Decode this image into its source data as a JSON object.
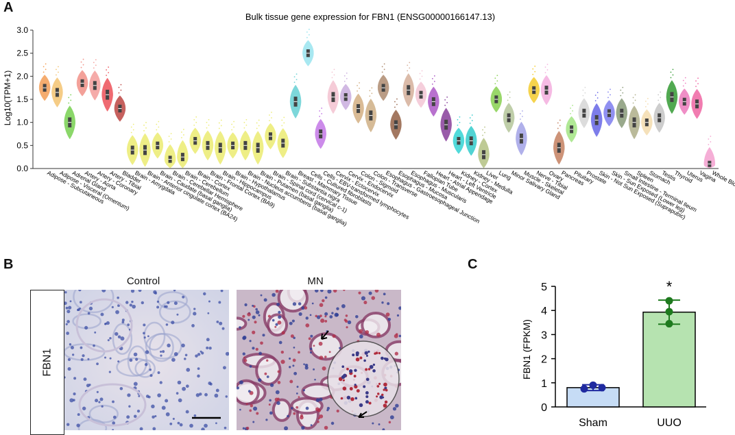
{
  "panels": {
    "a": "A",
    "b": "B",
    "c": "C"
  },
  "panel_b": {
    "row_label": "FBN1",
    "control_title": "Control",
    "mn_title": "MN"
  },
  "chart_data": [
    {
      "type": "violin",
      "title": "Bulk tissue gene expression for FBN1 (ENSG00000166147.13)",
      "xlabel": "",
      "ylabel": "Log10(TPM+1)",
      "ylim": [
        0,
        3.0
      ],
      "yticks": [
        "0.0",
        "0.5",
        "1.0",
        "1.5",
        "2.0",
        "2.5",
        "3.0"
      ],
      "grid": false,
      "categories": [
        "Adipose - Subcutaneous",
        "Adipose - Visceral (Omentum)",
        "Adrenal Gland",
        "Artery - Aorta",
        "Artery - Coronary",
        "Artery - Tibial",
        "Bladder",
        "Brain - Amygdala",
        "Brain - Anterior cingulate cortex (BA24)",
        "Brain - Caudate (basal ganglia)",
        "Brain - Cerebellar Hemisphere",
        "Brain - Cerebellum",
        "Brain - Cortex",
        "Brain - Frontal Cortex (BA9)",
        "Brain - Hippocampus",
        "Brain - Hypothalamus",
        "Brain - Nucleus accumbens (basal ganglia)",
        "Brain - Putamen (basal ganglia)",
        "Brain - Spinal cord (cervical c-1)",
        "Brain - Substantia nigra",
        "Breast - Mammary Tissue",
        "Cells - Cultured fibroblasts",
        "Cells - EBV-transformed lymphocytes",
        "Cervix - Ectocervix",
        "Cervix - Endocervix",
        "Colon - Sigmoid",
        "Colon - Transverse",
        "Esophagus - Gastroesophageal Junction",
        "Esophagus - Mucosa",
        "Esophagus - Muscularis",
        "Fallopian Tube",
        "Heart - Atrial Appendage",
        "Heart - Left Ventricle",
        "Kidney - Cortex",
        "Kidney - Medulla",
        "Liver",
        "Lung",
        "Minor Salivary Gland",
        "Muscle - Skeletal",
        "Nerve - Tibial",
        "Ovary",
        "Pancreas",
        "Pituitary",
        "Prostate",
        "Skin - Not Sun Exposed (Suprapubic)",
        "Skin - Sun Exposed (Lower leg)",
        "Small Intestine - Terminal Ileum",
        "Spleen",
        "Stomach",
        "Testis",
        "Thyroid",
        "Uterus",
        "Vagina",
        "Whole Blood"
      ],
      "medians": [
        1.75,
        1.65,
        1.0,
        1.85,
        1.8,
        1.6,
        1.3,
        0.4,
        0.4,
        0.5,
        0.2,
        0.25,
        0.6,
        0.5,
        0.45,
        0.5,
        0.5,
        0.45,
        0.7,
        0.55,
        1.45,
        2.5,
        0.75,
        1.55,
        1.55,
        1.3,
        1.15,
        1.75,
        0.95,
        1.7,
        1.6,
        1.45,
        0.95,
        0.6,
        0.6,
        0.3,
        1.5,
        1.1,
        0.65,
        1.7,
        1.7,
        0.45,
        0.85,
        1.2,
        1.05,
        1.2,
        1.2,
        1.0,
        1.0,
        1.1,
        1.55,
        1.45,
        1.4,
        0.1
      ],
      "colors": [
        "#f4a460",
        "#f5c77a",
        "#7fd35a",
        "#f2978f",
        "#f5a3a0",
        "#ee5a62",
        "#c0504d",
        "#eded7a",
        "#eded7a",
        "#eded7a",
        "#eded7a",
        "#eded7a",
        "#eded7a",
        "#eded7a",
        "#eded7a",
        "#eded7a",
        "#eded7a",
        "#eded7a",
        "#eded7a",
        "#eded7a",
        "#6fd3d6",
        "#9fe6f0",
        "#c77fe8",
        "#f5c6d3",
        "#cdb2e0",
        "#d6b48a",
        "#d2b48c",
        "#b39278",
        "#9a6a50",
        "#d8b4a0",
        "#f5c9d8",
        "#b162c9",
        "#8e4aa0",
        "#3fd6d6",
        "#3fcfcf",
        "#b8c58a",
        "#8ed35a",
        "#b9c9a0",
        "#a8a8e8",
        "#f5cf3a",
        "#f5b3e0",
        "#c8886a",
        "#a8e68a",
        "#d9d9d9",
        "#6f6fe8",
        "#8484f0",
        "#8fa080",
        "#b3b390",
        "#f5deb3",
        "#c8c8c8",
        "#3fa03f",
        "#ee82c0",
        "#f06ea8",
        "#f5a6d2"
      ]
    },
    {
      "type": "bar",
      "title": "",
      "xlabel": "",
      "ylabel": "FBN1 (FPKM)",
      "ylim": [
        0,
        5
      ],
      "yticks": [
        "0",
        "1",
        "2",
        "3",
        "4",
        "5"
      ],
      "categories": [
        "Sham",
        "UUO"
      ],
      "values": [
        0.8,
        3.93
      ],
      "errors": [
        0.12,
        0.5
      ],
      "points": [
        [
          0.75,
          0.9,
          0.8
        ],
        [
          3.45,
          3.95,
          4.4
        ]
      ],
      "bar_colors": [
        "#c6dcf5",
        "#b6e3b0"
      ],
      "point_colors": [
        "#1f2aa0",
        "#1e7a1e"
      ],
      "annotations": [
        {
          "category": "UUO",
          "text": "*"
        }
      ]
    }
  ]
}
